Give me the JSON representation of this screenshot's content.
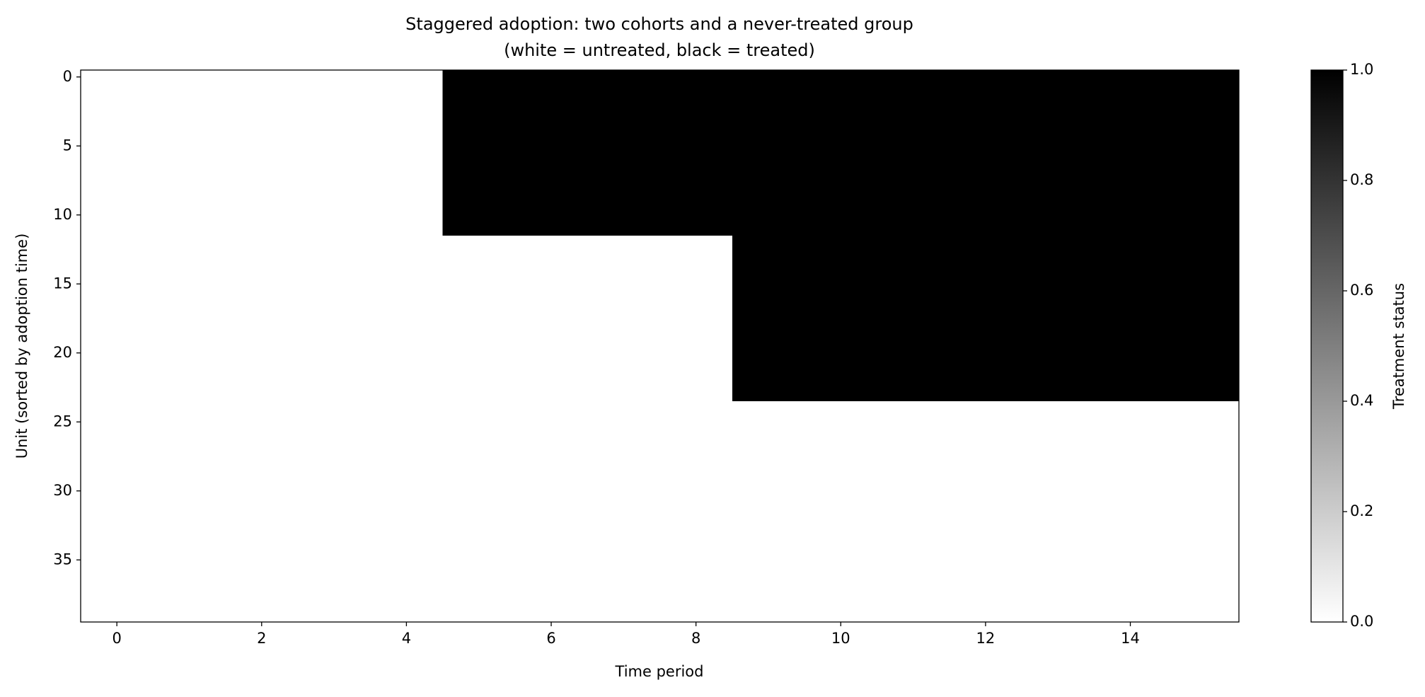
{
  "chart_data": {
    "type": "heatmap",
    "title": "Staggered adoption: two cohorts and a never-treated group",
    "subtitle": "(white = untreated, black = treated)",
    "xlabel": "Time period",
    "ylabel": "Unit (sorted by adoption time)",
    "colorbar_label": "Treatment status",
    "cmap": [
      "#ffffff",
      "#000000"
    ],
    "clim": [
      0,
      1
    ],
    "cticks": [
      {
        "value": 0,
        "label": "0.0"
      },
      0.2,
      0.4,
      0.6,
      0.8,
      {
        "value": 1,
        "label": "1.0"
      }
    ],
    "xlim": [
      -0.5,
      15.5
    ],
    "ylim": [
      39.5,
      -0.5
    ],
    "xticks": [
      0,
      2,
      4,
      6,
      8,
      10,
      12,
      14
    ],
    "yticks": [
      0,
      5,
      10,
      15,
      20,
      25,
      30,
      35
    ],
    "z": [
      [
        0,
        0,
        0,
        0,
        0,
        1,
        1,
        1,
        1,
        1,
        1,
        1,
        1,
        1,
        1,
        1
      ],
      [
        0,
        0,
        0,
        0,
        0,
        1,
        1,
        1,
        1,
        1,
        1,
        1,
        1,
        1,
        1,
        1
      ],
      [
        0,
        0,
        0,
        0,
        0,
        1,
        1,
        1,
        1,
        1,
        1,
        1,
        1,
        1,
        1,
        1
      ],
      [
        0,
        0,
        0,
        0,
        0,
        1,
        1,
        1,
        1,
        1,
        1,
        1,
        1,
        1,
        1,
        1
      ],
      [
        0,
        0,
        0,
        0,
        0,
        1,
        1,
        1,
        1,
        1,
        1,
        1,
        1,
        1,
        1,
        1
      ],
      [
        0,
        0,
        0,
        0,
        0,
        1,
        1,
        1,
        1,
        1,
        1,
        1,
        1,
        1,
        1,
        1
      ],
      [
        0,
        0,
        0,
        0,
        0,
        1,
        1,
        1,
        1,
        1,
        1,
        1,
        1,
        1,
        1,
        1
      ],
      [
        0,
        0,
        0,
        0,
        0,
        1,
        1,
        1,
        1,
        1,
        1,
        1,
        1,
        1,
        1,
        1
      ],
      [
        0,
        0,
        0,
        0,
        0,
        1,
        1,
        1,
        1,
        1,
        1,
        1,
        1,
        1,
        1,
        1
      ],
      [
        0,
        0,
        0,
        0,
        0,
        1,
        1,
        1,
        1,
        1,
        1,
        1,
        1,
        1,
        1,
        1
      ],
      [
        0,
        0,
        0,
        0,
        0,
        1,
        1,
        1,
        1,
        1,
        1,
        1,
        1,
        1,
        1,
        1
      ],
      [
        0,
        0,
        0,
        0,
        0,
        1,
        1,
        1,
        1,
        1,
        1,
        1,
        1,
        1,
        1,
        1
      ],
      [
        0,
        0,
        0,
        0,
        0,
        0,
        0,
        0,
        0,
        1,
        1,
        1,
        1,
        1,
        1,
        1
      ],
      [
        0,
        0,
        0,
        0,
        0,
        0,
        0,
        0,
        0,
        1,
        1,
        1,
        1,
        1,
        1,
        1
      ],
      [
        0,
        0,
        0,
        0,
        0,
        0,
        0,
        0,
        0,
        1,
        1,
        1,
        1,
        1,
        1,
        1
      ],
      [
        0,
        0,
        0,
        0,
        0,
        0,
        0,
        0,
        0,
        1,
        1,
        1,
        1,
        1,
        1,
        1
      ],
      [
        0,
        0,
        0,
        0,
        0,
        0,
        0,
        0,
        0,
        1,
        1,
        1,
        1,
        1,
        1,
        1
      ],
      [
        0,
        0,
        0,
        0,
        0,
        0,
        0,
        0,
        0,
        1,
        1,
        1,
        1,
        1,
        1,
        1
      ],
      [
        0,
        0,
        0,
        0,
        0,
        0,
        0,
        0,
        0,
        1,
        1,
        1,
        1,
        1,
        1,
        1
      ],
      [
        0,
        0,
        0,
        0,
        0,
        0,
        0,
        0,
        0,
        1,
        1,
        1,
        1,
        1,
        1,
        1
      ],
      [
        0,
        0,
        0,
        0,
        0,
        0,
        0,
        0,
        0,
        1,
        1,
        1,
        1,
        1,
        1,
        1
      ],
      [
        0,
        0,
        0,
        0,
        0,
        0,
        0,
        0,
        0,
        1,
        1,
        1,
        1,
        1,
        1,
        1
      ],
      [
        0,
        0,
        0,
        0,
        0,
        0,
        0,
        0,
        0,
        1,
        1,
        1,
        1,
        1,
        1,
        1
      ],
      [
        0,
        0,
        0,
        0,
        0,
        0,
        0,
        0,
        0,
        1,
        1,
        1,
        1,
        1,
        1,
        1
      ],
      [
        0,
        0,
        0,
        0,
        0,
        0,
        0,
        0,
        0,
        0,
        0,
        0,
        0,
        0,
        0,
        0
      ],
      [
        0,
        0,
        0,
        0,
        0,
        0,
        0,
        0,
        0,
        0,
        0,
        0,
        0,
        0,
        0,
        0
      ],
      [
        0,
        0,
        0,
        0,
        0,
        0,
        0,
        0,
        0,
        0,
        0,
        0,
        0,
        0,
        0,
        0
      ],
      [
        0,
        0,
        0,
        0,
        0,
        0,
        0,
        0,
        0,
        0,
        0,
        0,
        0,
        0,
        0,
        0
      ],
      [
        0,
        0,
        0,
        0,
        0,
        0,
        0,
        0,
        0,
        0,
        0,
        0,
        0,
        0,
        0,
        0
      ],
      [
        0,
        0,
        0,
        0,
        0,
        0,
        0,
        0,
        0,
        0,
        0,
        0,
        0,
        0,
        0,
        0
      ],
      [
        0,
        0,
        0,
        0,
        0,
        0,
        0,
        0,
        0,
        0,
        0,
        0,
        0,
        0,
        0,
        0
      ],
      [
        0,
        0,
        0,
        0,
        0,
        0,
        0,
        0,
        0,
        0,
        0,
        0,
        0,
        0,
        0,
        0
      ],
      [
        0,
        0,
        0,
        0,
        0,
        0,
        0,
        0,
        0,
        0,
        0,
        0,
        0,
        0,
        0,
        0
      ],
      [
        0,
        0,
        0,
        0,
        0,
        0,
        0,
        0,
        0,
        0,
        0,
        0,
        0,
        0,
        0,
        0
      ],
      [
        0,
        0,
        0,
        0,
        0,
        0,
        0,
        0,
        0,
        0,
        0,
        0,
        0,
        0,
        0,
        0
      ],
      [
        0,
        0,
        0,
        0,
        0,
        0,
        0,
        0,
        0,
        0,
        0,
        0,
        0,
        0,
        0,
        0
      ],
      [
        0,
        0,
        0,
        0,
        0,
        0,
        0,
        0,
        0,
        0,
        0,
        0,
        0,
        0,
        0,
        0
      ],
      [
        0,
        0,
        0,
        0,
        0,
        0,
        0,
        0,
        0,
        0,
        0,
        0,
        0,
        0,
        0,
        0
      ],
      [
        0,
        0,
        0,
        0,
        0,
        0,
        0,
        0,
        0,
        0,
        0,
        0,
        0,
        0,
        0,
        0
      ],
      [
        0,
        0,
        0,
        0,
        0,
        0,
        0,
        0,
        0,
        0,
        0,
        0,
        0,
        0,
        0,
        0
      ]
    ]
  }
}
